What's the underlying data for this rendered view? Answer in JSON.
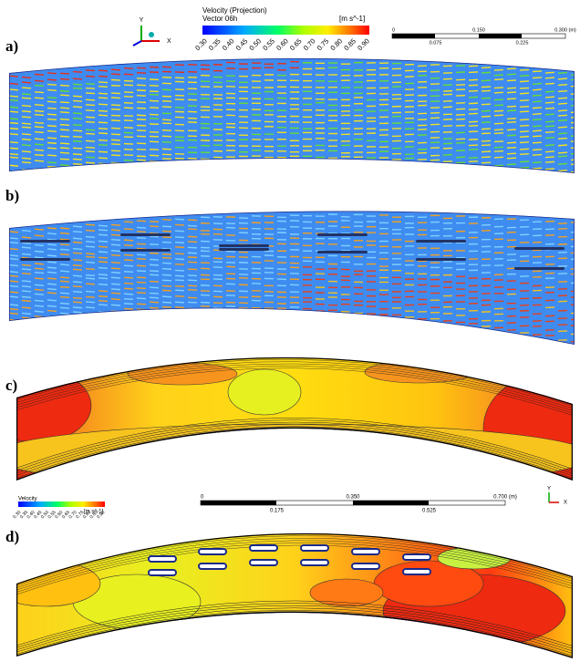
{
  "panels": [
    {
      "label": "a)"
    },
    {
      "label": "b)"
    },
    {
      "label": "c)"
    },
    {
      "label": "d)"
    }
  ],
  "vector_legend": {
    "title": "Velocity (Projection)",
    "subtitle": "Vector 06h",
    "unit": "[m s^-1]",
    "ticks": [
      "0.30",
      "0.35",
      "0.40",
      "0.45",
      "0.50",
      "0.55",
      "0.60",
      "0.65",
      "0.70",
      "0.75",
      "0.80",
      "0.85",
      "0.90"
    ]
  },
  "vector_scale": {
    "labels_top": [
      "0",
      "0.150",
      "0.300 (m)"
    ],
    "labels_bottom": [
      "0.075",
      "0.225"
    ]
  },
  "contour_legend": {
    "title": "Velocity",
    "unit": "[m s^-1]",
    "ticks": [
      "0.30",
      "0.35",
      "0.40",
      "0.45",
      "0.50",
      "0.55",
      "0.60",
      "0.65",
      "0.70",
      "0.75",
      "0.80",
      "0.85",
      "0.90"
    ]
  },
  "contour_scale": {
    "labels_top": [
      "0",
      "0.350",
      "0.700 (m)"
    ],
    "labels_bottom": [
      "0.175",
      "0.525"
    ]
  },
  "axes": {
    "y": "Y",
    "x": "X"
  }
}
